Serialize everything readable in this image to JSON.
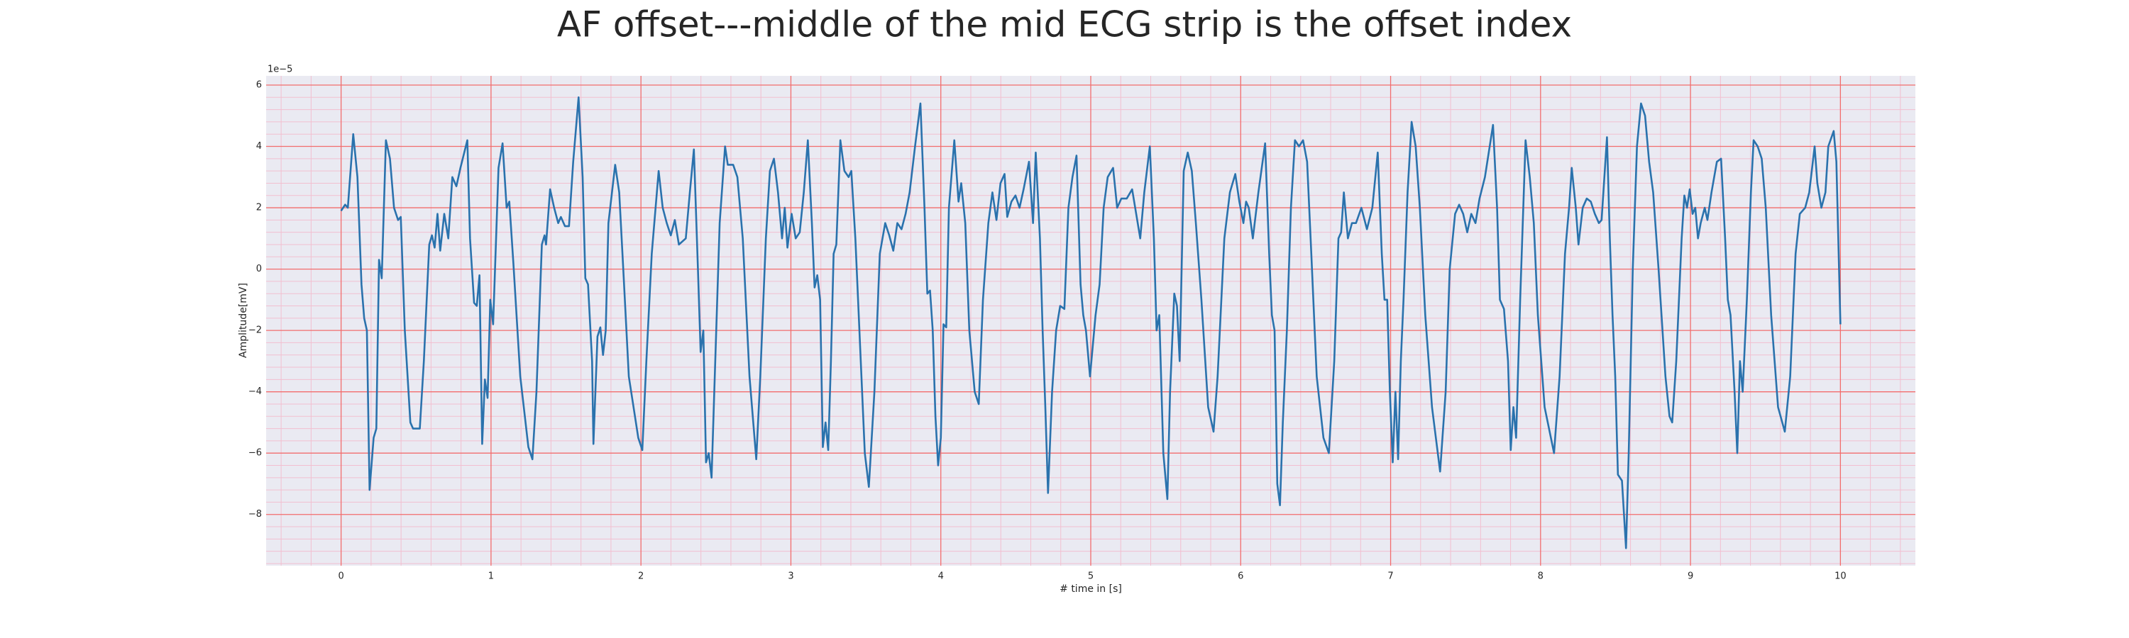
{
  "chart_data": {
    "type": "line",
    "title": "AF offset---middle of the mid ECG strip is the offset index",
    "xlabel": "# time in [s]",
    "ylabel": "Amplitude[mV]",
    "y_offset_label": "1e−5",
    "color": "#2a72ad",
    "background": "#eaeaf2",
    "grid": true,
    "grid_color": "#f26d6d",
    "minor_grid_color": "#f2bfd0",
    "xlim": [
      -0.5,
      10.5
    ],
    "ylim": [
      -9.67,
      6.3
    ],
    "xticks": [
      0,
      1,
      2,
      3,
      4,
      5,
      6,
      7,
      8,
      9,
      10
    ],
    "yticks": [
      {
        "value": -8,
        "label": "−8"
      },
      {
        "value": -6,
        "label": "−6"
      },
      {
        "value": -4,
        "label": "−4"
      },
      {
        "value": -2,
        "label": "−2"
      },
      0,
      2,
      4,
      6
    ],
    "x_minor_ticks": [
      -0.4,
      -0.2,
      0.2,
      0.4,
      0.6,
      0.8,
      1.2,
      1.4,
      1.6,
      1.8,
      2.2,
      2.4,
      2.6,
      2.8,
      3.2,
      3.4,
      3.6,
      3.8,
      4.2,
      4.4,
      4.6,
      4.8,
      5.2,
      5.4,
      5.6,
      5.8,
      6.2,
      6.4,
      6.6,
      6.8,
      7.2,
      7.4,
      7.6,
      7.8,
      8.2,
      8.4,
      8.6,
      8.8,
      9.2,
      9.4,
      9.6,
      9.8,
      10.2,
      10.4
    ],
    "y_minor_ticks": [
      -9.6,
      -9.2,
      -8.8,
      -8.4,
      -7.6,
      -7.2,
      -6.8,
      -6.4,
      -5.6,
      -5.2,
      -4.8,
      -4.4,
      -3.6,
      -3.2,
      -2.8,
      -2.4,
      -1.6,
      -1.2,
      -0.8,
      -0.4,
      0.4,
      0.8,
      1.2,
      1.6,
      2.4,
      2.8,
      3.2,
      3.6,
      4.4,
      4.8,
      5.2,
      5.6
    ],
    "x": [
      0,
      0.027,
      0.045,
      0.081,
      0.109,
      0.136,
      0.154,
      0.172,
      0.19,
      0.217,
      0.235,
      0.253,
      0.271,
      0.299,
      0.326,
      0.353,
      0.38,
      0.398,
      0.425,
      0.462,
      0.48,
      0.525,
      0.552,
      0.588,
      0.606,
      0.624,
      0.643,
      0.661,
      0.688,
      0.715,
      0.742,
      0.769,
      0.796,
      0.842,
      0.86,
      0.887,
      0.905,
      0.923,
      0.941,
      0.959,
      0.977,
      0.995,
      1.014,
      1.05,
      1.077,
      1.104,
      1.122,
      1.149,
      1.195,
      1.249,
      1.276,
      1.303,
      1.339,
      1.357,
      1.367,
      1.394,
      1.421,
      1.448,
      1.466,
      1.493,
      1.52,
      1.548,
      1.584,
      1.611,
      1.629,
      1.647,
      1.674,
      1.683,
      1.71,
      1.729,
      1.747,
      1.765,
      1.783,
      1.828,
      1.855,
      1.882,
      1.919,
      1.982,
      2.009,
      2.036,
      2.072,
      2.118,
      2.145,
      2.172,
      2.199,
      2.226,
      2.253,
      2.299,
      2.326,
      2.353,
      2.38,
      2.398,
      2.416,
      2.434,
      2.452,
      2.471,
      2.489,
      2.525,
      2.561,
      2.579,
      2.615,
      2.643,
      2.679,
      2.724,
      2.769,
      2.796,
      2.833,
      2.86,
      2.887,
      2.914,
      2.941,
      2.959,
      2.977,
      3.005,
      3.032,
      3.059,
      3.086,
      3.113,
      3.14,
      3.158,
      3.176,
      3.195,
      3.213,
      3.231,
      3.249,
      3.267,
      3.285,
      3.303,
      3.33,
      3.357,
      3.385,
      3.403,
      3.43,
      3.466,
      3.493,
      3.52,
      3.557,
      3.593,
      3.629,
      3.656,
      3.683,
      3.71,
      3.738,
      3.765,
      3.792,
      3.828,
      3.864,
      3.891,
      3.91,
      3.928,
      3.946,
      3.964,
      3.982,
      4.0,
      4.018,
      4.036,
      4.054,
      4.09,
      4.118,
      4.136,
      4.163,
      4.19,
      4.226,
      4.253,
      4.281,
      4.317,
      4.344,
      4.371,
      4.398,
      4.425,
      4.443,
      4.471,
      4.498,
      4.525,
      4.552,
      4.588,
      4.615,
      4.633,
      4.661,
      4.679,
      4.697,
      4.715,
      4.742,
      4.769,
      4.796,
      4.824,
      4.851,
      4.878,
      4.905,
      4.932,
      4.95,
      4.968,
      4.995,
      5.032,
      5.059,
      5.086,
      5.113,
      5.149,
      5.176,
      5.204,
      5.24,
      5.276,
      5.303,
      5.33,
      5.357,
      5.394,
      5.421,
      5.439,
      5.457,
      5.484,
      5.511,
      5.529,
      5.557,
      5.575,
      5.593,
      5.62,
      5.647,
      5.674,
      5.701,
      5.738,
      5.783,
      5.819,
      5.846,
      5.891,
      5.928,
      5.964,
      5.991,
      6.018,
      6.036,
      6.054,
      6.081,
      6.118,
      6.163,
      6.19,
      6.208,
      6.226,
      6.244,
      6.262,
      6.281,
      6.308,
      6.335,
      6.362,
      6.389,
      6.416,
      6.443,
      6.471,
      6.507,
      6.552,
      6.588,
      6.624,
      6.652,
      6.67,
      6.688,
      6.715,
      6.742,
      6.769,
      6.805,
      6.842,
      6.878,
      6.914,
      6.941,
      6.959,
      6.977,
      6.995,
      7.014,
      7.032,
      7.05,
      7.068,
      7.086,
      7.113,
      7.14,
      7.167,
      7.195,
      7.231,
      7.276,
      7.33,
      7.367,
      7.394,
      7.43,
      7.457,
      7.484,
      7.511,
      7.538,
      7.566,
      7.593,
      7.629,
      7.683,
      7.71,
      7.729,
      7.756,
      7.783,
      7.801,
      7.819,
      7.837,
      7.864,
      7.9,
      7.928,
      7.955,
      7.982,
      8.027,
      8.09,
      8.127,
      8.163,
      8.19,
      8.208,
      8.235,
      8.253,
      8.281,
      8.308,
      8.335,
      8.362,
      8.389,
      8.407,
      8.443,
      8.462,
      8.48,
      8.498,
      8.516,
      8.543,
      8.57,
      8.588,
      8.615,
      8.643,
      8.67,
      8.697,
      8.724,
      8.751,
      8.787,
      8.833,
      8.86,
      8.878,
      8.905,
      8.941,
      8.959,
      8.977,
      8.995,
      9.014,
      9.032,
      9.05,
      9.068,
      9.095,
      9.113,
      9.14,
      9.176,
      9.204,
      9.231,
      9.249,
      9.267,
      9.294,
      9.312,
      9.33,
      9.348,
      9.376,
      9.403,
      9.421,
      9.448,
      9.475,
      9.502,
      9.538,
      9.584,
      9.629,
      9.665,
      9.701,
      9.729,
      9.765,
      9.792,
      9.828,
      9.846,
      9.873,
      9.9,
      9.919,
      9.955,
      9.973,
      10.0
    ],
    "values": [
      1.9,
      2.1,
      2.0,
      4.4,
      3.0,
      -0.5,
      -1.6,
      -2.0,
      -7.2,
      -5.5,
      -5.2,
      0.3,
      -0.3,
      4.2,
      3.6,
      2.0,
      1.6,
      1.7,
      -2.0,
      -5.0,
      -5.2,
      -5.2,
      -3.0,
      0.8,
      1.1,
      0.7,
      1.8,
      0.6,
      1.8,
      1.0,
      3.0,
      2.7,
      3.3,
      4.2,
      1.0,
      -1.1,
      -1.2,
      -0.2,
      -5.7,
      -3.6,
      -4.2,
      -1.0,
      -1.8,
      3.3,
      4.1,
      2.0,
      2.2,
      0.2,
      -3.5,
      -5.8,
      -6.2,
      -4.0,
      0.8,
      1.1,
      0.8,
      2.6,
      2.0,
      1.5,
      1.7,
      1.4,
      1.4,
      3.5,
      5.6,
      3.0,
      -0.3,
      -0.5,
      -3.0,
      -5.7,
      -2.2,
      -1.9,
      -2.8,
      -2.0,
      1.5,
      3.4,
      2.5,
      0.0,
      -3.5,
      -5.5,
      -5.9,
      -3.0,
      0.5,
      3.2,
      2.0,
      1.5,
      1.1,
      1.6,
      0.8,
      1.0,
      2.5,
      3.9,
      0.0,
      -2.7,
      -2.0,
      -6.3,
      -6.0,
      -6.8,
      -4.0,
      1.5,
      4.0,
      3.4,
      3.4,
      3.0,
      1.0,
      -3.5,
      -6.2,
      -3.5,
      1.0,
      3.2,
      3.6,
      2.5,
      1.0,
      2.0,
      0.7,
      1.8,
      1.0,
      1.2,
      2.5,
      4.2,
      1.5,
      -0.6,
      -0.2,
      -1.0,
      -5.8,
      -5.0,
      -5.9,
      -3.0,
      0.5,
      0.8,
      4.2,
      3.2,
      3.0,
      3.2,
      1.0,
      -3.0,
      -6.0,
      -7.1,
      -4.0,
      0.5,
      1.5,
      1.1,
      0.6,
      1.5,
      1.3,
      1.8,
      2.5,
      4.0,
      5.4,
      2.0,
      -0.8,
      -0.7,
      -2.0,
      -4.8,
      -6.4,
      -5.5,
      -1.8,
      -1.9,
      2.0,
      4.2,
      2.2,
      2.8,
      1.5,
      -2.0,
      -4.0,
      -4.4,
      -1.0,
      1.5,
      2.5,
      1.6,
      2.8,
      3.1,
      1.7,
      2.2,
      2.4,
      2.0,
      2.6,
      3.5,
      1.5,
      3.8,
      1.0,
      -2.0,
      -4.5,
      -7.3,
      -4.0,
      -2.0,
      -1.2,
      -1.3,
      2.0,
      3.0,
      3.7,
      -0.5,
      -1.5,
      -2.0,
      -3.5,
      -1.5,
      -0.5,
      2.0,
      3.0,
      3.3,
      2.0,
      2.3,
      2.3,
      2.6,
      1.8,
      1.0,
      2.5,
      4.0,
      1.0,
      -2.0,
      -1.5,
      -6.0,
      -7.5,
      -4.0,
      -0.8,
      -1.2,
      -3.0,
      3.2,
      3.8,
      3.2,
      1.5,
      -1.0,
      -4.5,
      -5.3,
      -3.5,
      1.0,
      2.5,
      3.1,
      2.2,
      1.5,
      2.2,
      2.0,
      1.0,
      2.5,
      4.1,
      0.5,
      -1.5,
      -2.0,
      -7.0,
      -7.7,
      -5.0,
      -2.0,
      2.0,
      4.2,
      4.0,
      4.2,
      3.5,
      0.5,
      -3.5,
      -5.5,
      -6.0,
      -3.0,
      1.0,
      1.2,
      2.5,
      1.0,
      1.5,
      1.5,
      2.0,
      1.3,
      2.0,
      3.8,
      0.5,
      -1.0,
      -1.0,
      -4.0,
      -6.3,
      -4.0,
      -6.2,
      -3.0,
      -1.0,
      2.5,
      4.8,
      4.0,
      2.0,
      -1.5,
      -4.5,
      -6.6,
      -4.0,
      0.0,
      1.8,
      2.1,
      1.8,
      1.2,
      1.8,
      1.5,
      2.3,
      3.0,
      4.7,
      2.0,
      -1.0,
      -1.3,
      -3.0,
      -5.9,
      -4.5,
      -5.5,
      -1.0,
      4.2,
      3.0,
      1.5,
      -1.5,
      -4.5,
      -6.0,
      -3.5,
      0.5,
      2.0,
      3.3,
      2.0,
      0.8,
      2.0,
      2.3,
      2.2,
      1.8,
      1.5,
      1.6,
      4.3,
      1.0,
      -1.5,
      -3.5,
      -6.7,
      -6.9,
      -9.1,
      -6.0,
      0.0,
      4.0,
      5.4,
      5.0,
      3.5,
      2.5,
      0.0,
      -3.5,
      -4.8,
      -5.0,
      -3.0,
      1.0,
      2.4,
      2.0,
      2.6,
      1.8,
      2.0,
      1.0,
      1.5,
      2.0,
      1.6,
      2.5,
      3.5,
      3.6,
      1.0,
      -1.0,
      -1.5,
      -4.0,
      -6.0,
      -3.0,
      -4.0,
      -1.0,
      2.5,
      4.2,
      4.0,
      3.6,
      2.0,
      -1.5,
      -4.5,
      -5.3,
      -3.5,
      0.5,
      1.8,
      2.0,
      2.5,
      4.0,
      2.8,
      2.0,
      2.5,
      4.0,
      4.5,
      3.5,
      -1.8
    ]
  }
}
